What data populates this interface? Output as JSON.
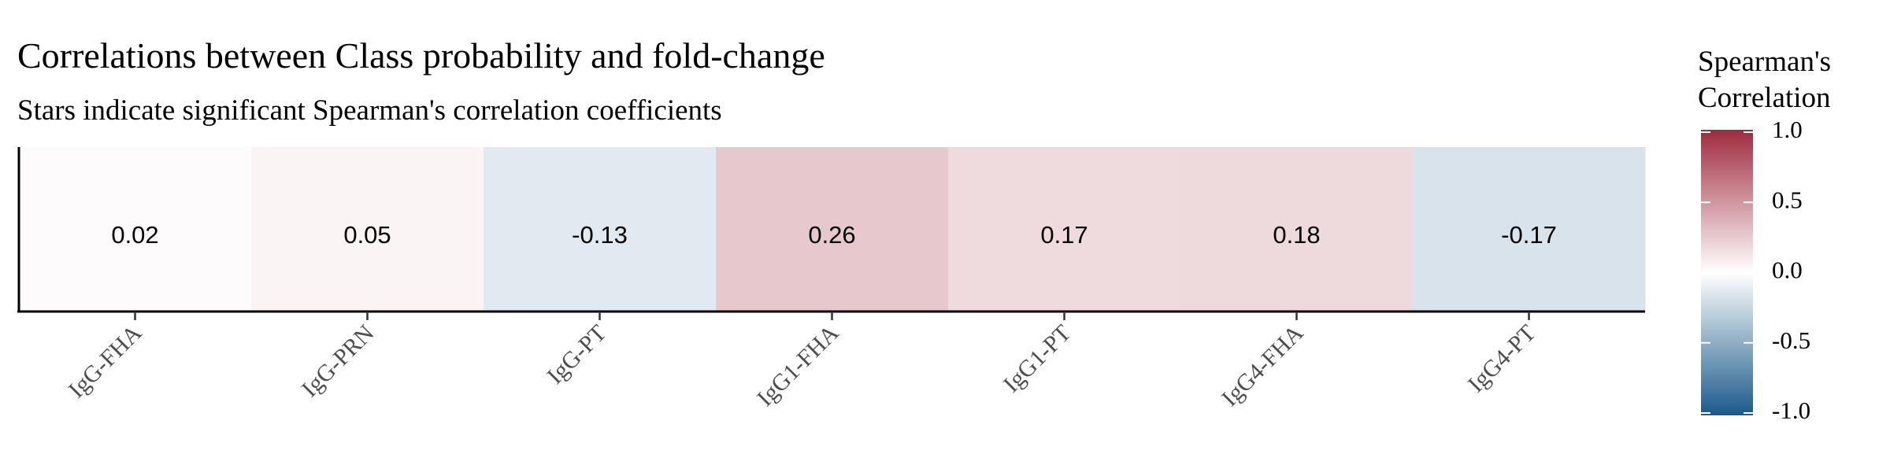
{
  "chart_data": {
    "type": "heatmap",
    "title": "Correlations between Class probability and fold-change",
    "subtitle": "Stars indicate significant Spearman's correlation coefficients",
    "categories": [
      "IgG-FHA",
      "IgG-PRN",
      "IgG-PT",
      "IgG1-FHA",
      "IgG1-PT",
      "IgG4-FHA",
      "IgG4-PT"
    ],
    "values": [
      0.02,
      0.05,
      -0.13,
      0.26,
      0.17,
      0.18,
      -0.17
    ],
    "value_labels": [
      "0.02",
      "0.05",
      "-0.13",
      "0.26",
      "0.17",
      "0.18",
      "-0.17"
    ],
    "legend": {
      "title_lines": [
        "Spearman's",
        "Correlation"
      ],
      "range": [
        -1.0,
        1.0
      ],
      "ticks": [
        1.0,
        0.5,
        0.0,
        -0.5,
        -1.0
      ],
      "tick_labels": [
        "1.0",
        "0.5",
        "0.0",
        "-0.5",
        "-1.0"
      ],
      "placement": "right"
    },
    "colors": {
      "low": "#1b5a8a",
      "mid": "#ffffff",
      "high": "#9e2b3e"
    },
    "grid": false
  }
}
